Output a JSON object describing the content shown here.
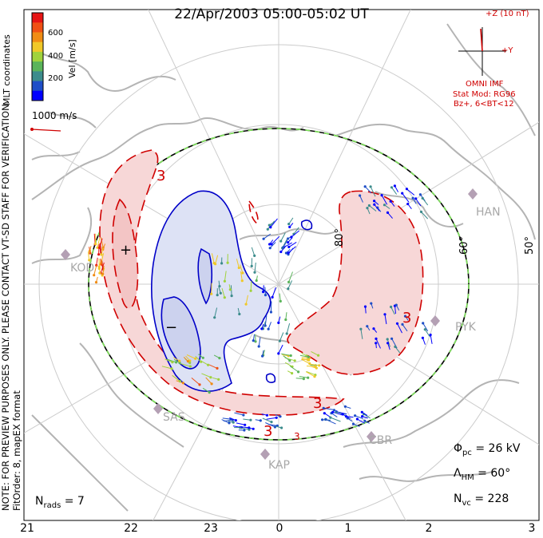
{
  "title": "22/Apr/2003 05:00-05:02 UT",
  "colorbar": {
    "title": "Vel [m/s]",
    "ticks": [
      "600",
      "400",
      "200"
    ],
    "colors": [
      "#0000ff",
      "#1e4ec8",
      "#3c8c8c",
      "#5ab45a",
      "#a0d23c",
      "#f0c828",
      "#f08c14",
      "#f05014",
      "#e61414"
    ]
  },
  "coordinates": "MLT coordinates",
  "velocity_scale": "1000 m/s",
  "imf": {
    "z_label": "+Z (10 nT)",
    "y_label": "+Y",
    "source": "OMNI IMF",
    "model": "Stat Mod: RG96",
    "condition": "Bz+, 6<BT<12"
  },
  "note": "NOTE: FOR PREVIEW PURPOSES ONLY. PLEASE CONTACT VT-SD STAFF FOR VERIFICATION.",
  "fit_order": "FitOrder: 8, mapEX format",
  "latitude_labels": [
    "80°",
    "60°",
    "50°"
  ],
  "radar_labels": [
    "HAN",
    "PYK",
    "CBR",
    "KAP",
    "SAS",
    "KOD"
  ],
  "contour_labels": [
    "3",
    "3",
    "3",
    "3",
    "3"
  ],
  "extrema": {
    "max": "+",
    "min": "−"
  },
  "stats": {
    "phi_pc": "26 kV",
    "lambda_hm": "60°",
    "n_vc": "228",
    "n_rads": "7"
  },
  "mlt_ticks": [
    "21",
    "22",
    "23",
    "0",
    "1",
    "2",
    "3"
  ]
}
